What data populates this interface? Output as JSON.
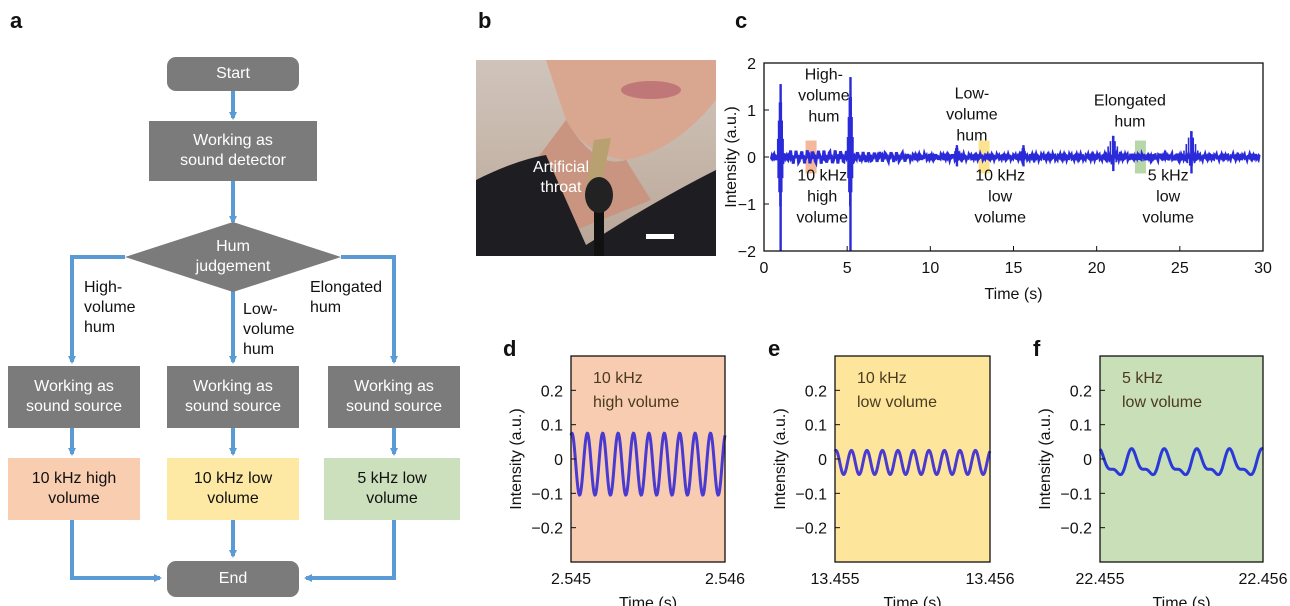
{
  "panels": {
    "a": "a",
    "b": "b",
    "c": "c",
    "d": "d",
    "e": "e",
    "f": "f"
  },
  "flowchart": {
    "start": "Start",
    "detector": "Working as\nsound detector",
    "decision": "Hum\njudgement",
    "branch_left": "High-\nvolume\nhum",
    "branch_mid": "Low-\nvolume\nhum",
    "branch_right": "Elongated\nhum",
    "source_left": "Working as\nsound source",
    "source_mid": "Working as\nsound source",
    "source_right": "Working as\nsound source",
    "out_left": "10 kHz high\nvolume",
    "out_mid": "10 kHz low\nvolume",
    "out_right": "5 kHz low\nvolume",
    "end": "End",
    "colors": {
      "box": "#7b7b7b",
      "arrow": "#5b9bd5",
      "out_left": "#f8cdb0",
      "out_mid": "#fde9a3",
      "out_right": "#cce0bd"
    }
  },
  "photo": {
    "label": "Artificial\nthroat"
  },
  "chart_data": [
    {
      "panel": "c",
      "type": "line",
      "xlabel": "Time (s)",
      "ylabel": "Intensity (a.u.)",
      "xlim": [
        0,
        30
      ],
      "ylim": [
        -2,
        2
      ],
      "xticks": [
        0,
        5,
        10,
        15,
        20,
        25,
        30
      ],
      "yticks": [
        -2,
        -1,
        0,
        1,
        2
      ],
      "color": "#2a2ad8",
      "bursts": [
        {
          "t": 1.0,
          "peak": 1.55,
          "trough": -2.0
        },
        {
          "t": 5.2,
          "peak": 1.7,
          "trough": -2.0
        },
        {
          "t": 11.6,
          "peak": 0.25,
          "trough": -0.2
        },
        {
          "t": 15.6,
          "peak": 0.25,
          "trough": -0.2
        },
        {
          "t": 21.0,
          "peak": 0.45,
          "trough": -0.3
        },
        {
          "t": 25.7,
          "peak": 0.55,
          "trough": -0.35
        }
      ],
      "annotations": [
        {
          "text": "High-\nvolume\nhum",
          "x": 3.6,
          "y": 1.65
        },
        {
          "text": "Low-\nvolume\nhum",
          "x": 12.5,
          "y": 1.25
        },
        {
          "text": "Elongated\nhum",
          "x": 22.0,
          "y": 1.1
        },
        {
          "text": "10 kHz\nhigh\nvolume",
          "x": 3.5,
          "y": -0.5
        },
        {
          "text": "10 kHz\nlow\nvolume",
          "x": 14.2,
          "y": -0.5
        },
        {
          "text": "5 kHz\nlow\nvolume",
          "x": 24.3,
          "y": -0.5
        }
      ],
      "highlights": [
        {
          "x": 2.8,
          "color": "#f4b89a"
        },
        {
          "x": 13.2,
          "color": "#fbe38f"
        },
        {
          "x": 22.6,
          "color": "#b7d7a8"
        }
      ]
    },
    {
      "panel": "d",
      "type": "line",
      "xlabel": "Time (s)",
      "ylabel": "Intensity (a.u.)",
      "xticks": [
        "2.545",
        "2.546"
      ],
      "yticks": [
        0.2,
        0.1,
        0,
        -0.1,
        -0.2
      ],
      "ylim": [
        -0.3,
        0.3
      ],
      "series_label": "10 kHz\nhigh volume",
      "bg": "#f7ccb0",
      "color": "#4a3ad0",
      "cycles": 10,
      "amplitude": 0.09,
      "offset": -0.015
    },
    {
      "panel": "e",
      "type": "line",
      "xlabel": "Time (s)",
      "ylabel": "Intensity (a.u.)",
      "xticks": [
        "13.455",
        "13.456"
      ],
      "yticks": [
        0.2,
        0.1,
        0,
        -0.1,
        -0.2
      ],
      "ylim": [
        -0.3,
        0.3
      ],
      "series_label": "10 kHz\nlow volume",
      "bg": "#fde69c",
      "color": "#4a3ad0",
      "cycles": 10,
      "amplitude": 0.035,
      "offset": -0.01
    },
    {
      "panel": "f",
      "type": "line",
      "xlabel": "Time (s)",
      "ylabel": "Intensity (a.u.)",
      "xticks": [
        "22.455",
        "22.456"
      ],
      "yticks": [
        0.2,
        0.1,
        0,
        -0.1,
        -0.2
      ],
      "ylim": [
        -0.3,
        0.3
      ],
      "series_label": "5 kHz\nlow volume",
      "bg": "#c9dfb8",
      "color": "#2a3ad8",
      "cycles": 5,
      "amplitude": 0.04,
      "offset": -0.015
    }
  ]
}
